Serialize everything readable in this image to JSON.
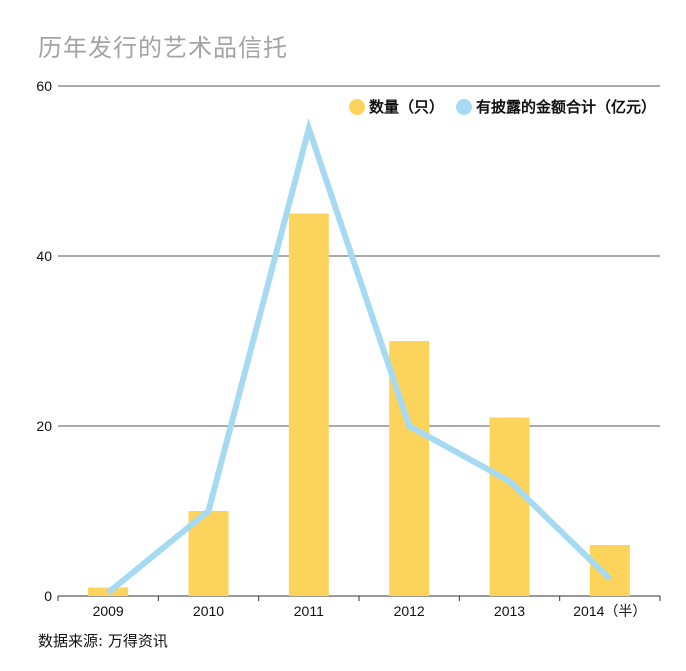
{
  "title": "历年发行的艺术品信托",
  "source": "数据来源: 万得资讯",
  "colors": {
    "bar": "#fcd45c",
    "line": "#a6daf2",
    "grid": "#555555"
  },
  "chart_data": {
    "type": "bar",
    "categories": [
      "2009",
      "2010",
      "2011",
      "2012",
      "2013",
      "2014（半）"
    ],
    "series": [
      {
        "name": "数量（只）",
        "type": "bar",
        "color": "#fcd45c",
        "values": [
          1,
          10,
          45,
          30,
          21,
          6
        ]
      },
      {
        "name": "有披露的金额合计（亿元）",
        "type": "line",
        "color": "#a6daf2",
        "values": [
          0.4,
          10,
          55,
          20,
          13.5,
          2
        ]
      }
    ],
    "ylim": [
      0,
      60
    ],
    "yticks": [
      "0",
      "20",
      "40",
      "60"
    ],
    "grid": true,
    "legend_position": "top-right"
  }
}
